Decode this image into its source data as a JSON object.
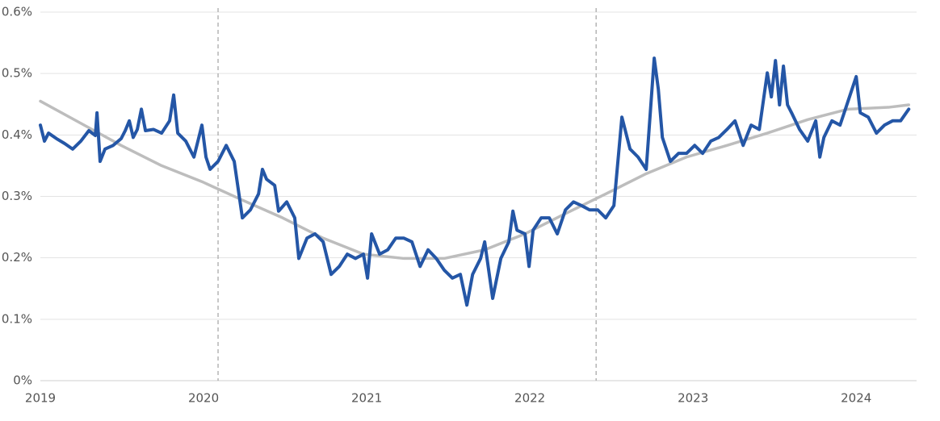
{
  "chart_data": {
    "type": "line",
    "xlim": [
      2019,
      2024.37
    ],
    "xticks": [
      2019,
      2020,
      2021,
      2022,
      2023,
      2024
    ],
    "ylim": [
      0,
      0.6
    ],
    "yticks": [
      {
        "value": 0,
        "label": "0%"
      },
      {
        "value": 0.1,
        "label": "0.1%"
      },
      {
        "value": 0.2,
        "label": "0.2%"
      },
      {
        "value": 0.3,
        "label": "0.3%"
      },
      {
        "value": 0.4,
        "label": "0.4%"
      },
      {
        "value": 0.5,
        "label": "0.5%"
      },
      {
        "value": 0.6,
        "label": "0.6%"
      }
    ],
    "grid": true,
    "reference_lines": [
      2020.089,
      2022.406
    ],
    "series": [
      {
        "color": "#2456a6",
        "x": [
          2019.0,
          2019.025,
          2019.05,
          2019.099,
          2019.149,
          2019.198,
          2019.248,
          2019.297,
          2019.337,
          2019.347,
          2019.366,
          2019.396,
          2019.446,
          2019.495,
          2019.52,
          2019.545,
          2019.569,
          2019.594,
          2019.619,
          2019.644,
          2019.693,
          2019.743,
          2019.792,
          2019.817,
          2019.842,
          2019.891,
          2019.941,
          2019.99,
          2020.015,
          2020.04,
          2020.089,
          2020.139,
          2020.188,
          2020.238,
          2020.287,
          2020.337,
          2020.361,
          2020.386,
          2020.436,
          2020.46,
          2020.51,
          2020.559,
          2020.584,
          2020.634,
          2020.683,
          2020.733,
          2020.782,
          2020.832,
          2020.881,
          2020.931,
          2020.98,
          2021.005,
          2021.03,
          2021.079,
          2021.129,
          2021.178,
          2021.228,
          2021.277,
          2021.327,
          2021.376,
          2021.426,
          2021.475,
          2021.525,
          2021.574,
          2021.614,
          2021.649,
          2021.698,
          2021.723,
          2021.772,
          2021.822,
          2021.871,
          2021.896,
          2021.921,
          2021.97,
          2021.995,
          2022.02,
          2022.069,
          2022.119,
          2022.168,
          2022.218,
          2022.267,
          2022.317,
          2022.366,
          2022.416,
          2022.465,
          2022.515,
          2022.564,
          2022.614,
          2022.663,
          2022.713,
          2022.762,
          2022.787,
          2022.812,
          2022.861,
          2022.911,
          2022.96,
          2023.01,
          2023.059,
          2023.109,
          2023.158,
          2023.208,
          2023.257,
          2023.307,
          2023.356,
          2023.406,
          2023.455,
          2023.48,
          2023.505,
          2023.53,
          2023.554,
          2023.579,
          2023.604,
          2023.653,
          2023.703,
          2023.752,
          2023.777,
          2023.802,
          2023.851,
          2023.901,
          2023.95,
          2024.0,
          2024.025,
          2024.074,
          2024.124,
          2024.173,
          2024.223,
          2024.272,
          2024.322
        ],
        "values": [
          0.416,
          0.39,
          0.403,
          0.394,
          0.386,
          0.377,
          0.39,
          0.407,
          0.399,
          0.436,
          0.357,
          0.377,
          0.383,
          0.394,
          0.407,
          0.423,
          0.396,
          0.409,
          0.442,
          0.407,
          0.409,
          0.403,
          0.423,
          0.465,
          0.403,
          0.39,
          0.364,
          0.416,
          0.364,
          0.344,
          0.357,
          0.383,
          0.357,
          0.265,
          0.278,
          0.304,
          0.344,
          0.328,
          0.318,
          0.276,
          0.291,
          0.265,
          0.199,
          0.232,
          0.239,
          0.226,
          0.173,
          0.186,
          0.206,
          0.199,
          0.206,
          0.167,
          0.239,
          0.206,
          0.213,
          0.232,
          0.232,
          0.226,
          0.186,
          0.213,
          0.199,
          0.18,
          0.167,
          0.173,
          0.123,
          0.173,
          0.199,
          0.226,
          0.134,
          0.199,
          0.226,
          0.276,
          0.245,
          0.239,
          0.186,
          0.245,
          0.265,
          0.265,
          0.239,
          0.278,
          0.291,
          0.285,
          0.278,
          0.278,
          0.265,
          0.285,
          0.429,
          0.377,
          0.364,
          0.344,
          0.525,
          0.475,
          0.396,
          0.357,
          0.37,
          0.37,
          0.383,
          0.37,
          0.39,
          0.396,
          0.409,
          0.423,
          0.383,
          0.416,
          0.409,
          0.501,
          0.462,
          0.521,
          0.449,
          0.512,
          0.449,
          0.436,
          0.409,
          0.39,
          0.423,
          0.364,
          0.396,
          0.423,
          0.416,
          0.455,
          0.495,
          0.436,
          0.429,
          0.403,
          0.416,
          0.423,
          0.423,
          0.442
        ]
      },
      {
        "color": "#bdbdbd",
        "x": [
          2019.0,
          2019.248,
          2019.495,
          2019.743,
          2019.99,
          2020.238,
          2020.485,
          2020.733,
          2020.98,
          2021.228,
          2021.475,
          2021.723,
          2021.97,
          2022.218,
          2022.465,
          2022.713,
          2022.96,
          2023.208,
          2023.455,
          2023.703,
          2023.95,
          2024.198,
          2024.322
        ],
        "values": [
          0.455,
          0.419,
          0.383,
          0.35,
          0.324,
          0.294,
          0.265,
          0.232,
          0.206,
          0.199,
          0.199,
          0.213,
          0.239,
          0.272,
          0.304,
          0.337,
          0.364,
          0.383,
          0.403,
          0.425,
          0.442,
          0.445,
          0.449
        ]
      }
    ]
  }
}
